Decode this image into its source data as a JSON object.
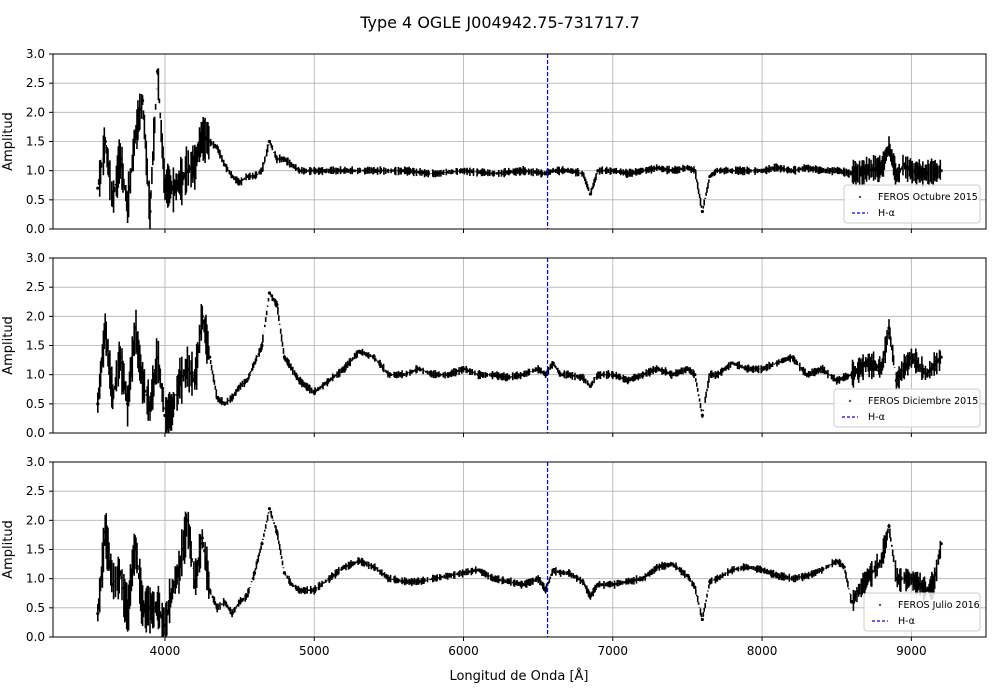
{
  "figure": {
    "title": "Type 4 OGLE J004942.75-731717.7",
    "xlabel": "Longitud de Onda [Å]",
    "ylabel": "Amplitud"
  },
  "chart_data": [
    {
      "type": "scatter",
      "series": [
        {
          "name": "FEROS Octubre 2015",
          "marker": "dot",
          "color": "#000000",
          "x": [
            3550,
            3600,
            3650,
            3700,
            3750,
            3800,
            3850,
            3900,
            3950,
            4000,
            4050,
            4100,
            4150,
            4200,
            4250,
            4300,
            4350,
            4400,
            4450,
            4500,
            4550,
            4600,
            4650,
            4700,
            4750,
            4800,
            4900,
            5000,
            5200,
            5400,
            5600,
            5800,
            6000,
            6200,
            6400,
            6550,
            6600,
            6700,
            6800,
            6850,
            6900,
            7000,
            7100,
            7200,
            7300,
            7400,
            7500,
            7550,
            7600,
            7650,
            7700,
            7800,
            7900,
            8000,
            8100,
            8200,
            8300,
            8400,
            8500,
            8600,
            8700,
            8800,
            8850,
            8900,
            8950,
            9000,
            9100,
            9200
          ],
          "y": [
            0.7,
            1.5,
            0.5,
            1.2,
            0.4,
            1.6,
            2.2,
            0.3,
            2.7,
            0.7,
            0.7,
            0.8,
            1.0,
            1.1,
            1.6,
            1.5,
            1.4,
            1.1,
            0.9,
            0.8,
            0.9,
            0.9,
            1.0,
            1.5,
            1.2,
            1.2,
            1.0,
            1.0,
            1.0,
            1.0,
            1.0,
            0.95,
            1.0,
            0.95,
            1.0,
            0.95,
            1.0,
            1.0,
            0.95,
            0.6,
            1.0,
            1.0,
            0.95,
            1.0,
            1.05,
            1.0,
            1.05,
            1.0,
            0.3,
            0.9,
            1.0,
            1.0,
            1.0,
            1.0,
            1.05,
            1.0,
            1.05,
            1.0,
            1.0,
            0.95,
            1.0,
            1.05,
            1.4,
            0.9,
            1.1,
            1.0,
            0.95,
            1.0
          ]
        },
        {
          "name": "H-α",
          "line": "dashed",
          "color": "#0000ff",
          "x_const": 6563
        }
      ],
      "xlim": [
        3250,
        9500
      ],
      "ylim": [
        0,
        3.0
      ],
      "yticks": [
        0.0,
        0.5,
        1.0,
        1.5,
        2.0,
        2.5,
        3.0
      ],
      "xticks": [
        4000,
        5000,
        6000,
        7000,
        8000,
        9000
      ],
      "grid": true,
      "legend": "lower-right"
    },
    {
      "type": "scatter",
      "series": [
        {
          "name": "FEROS Diciembre 2015",
          "marker": "dot",
          "color": "#000000",
          "x": [
            3550,
            3600,
            3650,
            3700,
            3750,
            3800,
            3850,
            3900,
            3950,
            4000,
            4050,
            4100,
            4150,
            4200,
            4250,
            4300,
            4350,
            4400,
            4450,
            4500,
            4550,
            4600,
            4650,
            4700,
            4750,
            4800,
            4850,
            4900,
            5000,
            5100,
            5200,
            5300,
            5400,
            5500,
            5600,
            5700,
            5800,
            5900,
            6000,
            6100,
            6200,
            6300,
            6400,
            6500,
            6550,
            6600,
            6650,
            6700,
            6800,
            6850,
            6900,
            7000,
            7100,
            7200,
            7300,
            7400,
            7500,
            7550,
            7600,
            7650,
            7700,
            7800,
            7900,
            8000,
            8100,
            8200,
            8300,
            8400,
            8500,
            8600,
            8700,
            8800,
            8850,
            8900,
            9000,
            9100,
            9200
          ],
          "y": [
            0.5,
            1.8,
            0.6,
            1.3,
            0.5,
            1.8,
            0.9,
            0.4,
            1.3,
            0.3,
            0.4,
            0.9,
            1.1,
            0.9,
            2.0,
            1.3,
            0.6,
            0.5,
            0.6,
            0.8,
            0.9,
            1.2,
            1.5,
            2.4,
            2.2,
            1.3,
            1.1,
            0.9,
            0.7,
            0.9,
            1.1,
            1.4,
            1.3,
            1.0,
            1.0,
            1.1,
            1.0,
            1.0,
            1.1,
            1.0,
            1.0,
            0.95,
            1.0,
            1.1,
            1.0,
            1.2,
            1.0,
            1.0,
            0.95,
            0.8,
            1.0,
            1.0,
            0.9,
            1.0,
            1.1,
            1.0,
            1.1,
            1.0,
            0.3,
            1.0,
            1.0,
            1.2,
            1.1,
            1.1,
            1.2,
            1.3,
            1.0,
            1.1,
            0.9,
            1.0,
            1.2,
            1.1,
            1.8,
            0.9,
            1.3,
            1.0,
            1.3
          ]
        },
        {
          "name": "H-α",
          "line": "dashed",
          "color": "#0000ff",
          "x_const": 6563
        }
      ],
      "xlim": [
        3250,
        9500
      ],
      "ylim": [
        0,
        3.0
      ],
      "yticks": [
        0.0,
        0.5,
        1.0,
        1.5,
        2.0,
        2.5,
        3.0
      ],
      "xticks": [
        4000,
        5000,
        6000,
        7000,
        8000,
        9000
      ],
      "grid": true,
      "legend": "lower-right"
    },
    {
      "type": "scatter",
      "series": [
        {
          "name": "FEROS Julio 2016",
          "marker": "dot",
          "color": "#000000",
          "x": [
            3550,
            3600,
            3650,
            3700,
            3750,
            3800,
            3850,
            3900,
            3950,
            4000,
            4050,
            4100,
            4150,
            4200,
            4250,
            4300,
            4350,
            4400,
            4450,
            4500,
            4550,
            4600,
            4650,
            4700,
            4750,
            4800,
            4850,
            4900,
            5000,
            5100,
            5200,
            5300,
            5400,
            5500,
            5600,
            5700,
            5800,
            5900,
            6000,
            6100,
            6200,
            6300,
            6400,
            6500,
            6550,
            6600,
            6650,
            6700,
            6800,
            6850,
            6900,
            7000,
            7100,
            7200,
            7300,
            7400,
            7500,
            7550,
            7600,
            7650,
            7700,
            7800,
            7900,
            8000,
            8100,
            8200,
            8300,
            8400,
            8500,
            8550,
            8600,
            8700,
            8800,
            8850,
            8900,
            9000,
            9100,
            9150,
            9200
          ],
          "y": [
            0.4,
            1.8,
            0.9,
            1.1,
            0.4,
            1.6,
            0.5,
            0.5,
            0.5,
            0.2,
            0.8,
            1.2,
            2.0,
            0.9,
            1.7,
            0.8,
            0.5,
            0.6,
            0.4,
            0.6,
            0.7,
            1.1,
            1.6,
            2.2,
            1.8,
            1.1,
            0.9,
            0.8,
            0.8,
            1.0,
            1.2,
            1.3,
            1.2,
            1.0,
            0.95,
            0.95,
            1.0,
            1.05,
            1.1,
            1.15,
            1.0,
            0.95,
            0.9,
            1.0,
            0.8,
            1.15,
            1.1,
            1.1,
            0.95,
            0.7,
            0.9,
            0.9,
            0.95,
            1.0,
            1.2,
            1.25,
            1.05,
            0.85,
            0.3,
            0.95,
            1.0,
            1.15,
            1.2,
            1.15,
            1.05,
            1.0,
            1.05,
            1.15,
            1.3,
            1.2,
            0.6,
            1.0,
            1.3,
            1.9,
            1.0,
            1.0,
            0.8,
            0.9,
            1.6
          ]
        },
        {
          "name": "H-α",
          "line": "dashed",
          "color": "#0000ff",
          "x_const": 6563
        }
      ],
      "xlim": [
        3250,
        9500
      ],
      "ylim": [
        0,
        3.0
      ],
      "yticks": [
        0.0,
        0.5,
        1.0,
        1.5,
        2.0,
        2.5,
        3.0
      ],
      "xticks": [
        4000,
        5000,
        6000,
        7000,
        8000,
        9000
      ],
      "grid": true,
      "legend": "lower-right"
    }
  ]
}
